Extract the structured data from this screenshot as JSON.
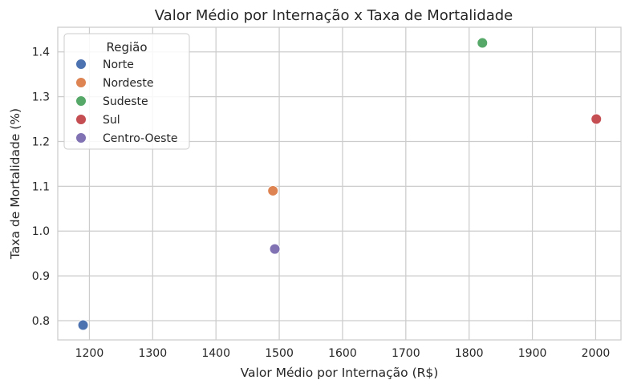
{
  "chart_data": {
    "type": "scatter",
    "title": "Valor Médio por Internação x Taxa de Mortalidade",
    "xlabel": "Valor Médio por Internação (R$)",
    "ylabel": "Taxa de Mortalidade (%)",
    "xlim": [
      1150,
      2040
    ],
    "ylim": [
      0.757,
      1.455
    ],
    "xticks": [
      "1200",
      "1300",
      "1400",
      "1500",
      "1600",
      "1700",
      "1800",
      "1900",
      "2000"
    ],
    "yticks": [
      "0.8",
      "0.9",
      "1.0",
      "1.1",
      "1.2",
      "1.3",
      "1.4"
    ],
    "grid": true,
    "legend": {
      "title": "Região",
      "placement": "top-left"
    },
    "series": [
      {
        "name": "Norte",
        "color": "#4c72b0",
        "x": 1190,
        "y": 0.79
      },
      {
        "name": "Nordeste",
        "color": "#dd8452",
        "x": 1490,
        "y": 1.09
      },
      {
        "name": "Sudeste",
        "color": "#55a868",
        "x": 1821,
        "y": 1.42
      },
      {
        "name": "Sul",
        "color": "#c44e52",
        "x": 2001,
        "y": 1.25
      },
      {
        "name": "Centro-Oeste",
        "color": "#8172b3",
        "x": 1493,
        "y": 0.96
      }
    ]
  }
}
